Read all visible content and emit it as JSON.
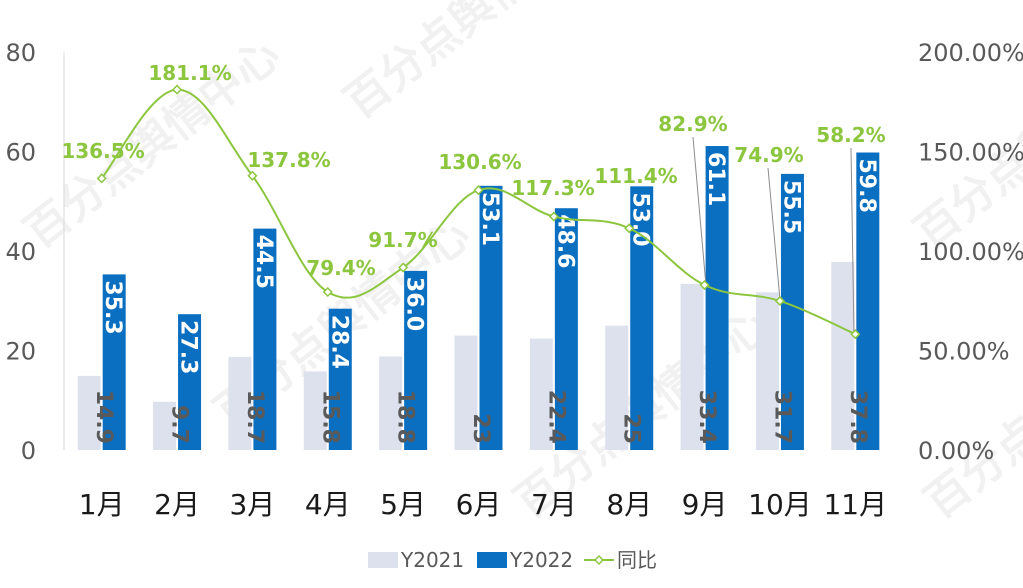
{
  "chart_data": {
    "type": "bar",
    "categories": [
      "1月",
      "2月",
      "3月",
      "4月",
      "5月",
      "6月",
      "7月",
      "8月",
      "9月",
      "10月",
      "11月"
    ],
    "series": [
      {
        "name": "Y2021",
        "type": "bar",
        "color": "#dde1ee",
        "values": [
          14.9,
          9.7,
          18.7,
          15.8,
          18.8,
          23,
          22.4,
          25,
          33.4,
          31.7,
          37.8
        ],
        "labels": [
          "14.9",
          "9.7",
          "18.7",
          "15.8",
          "18.8",
          "23",
          "22.4",
          "25",
          "33.4",
          "31.7",
          "37.8"
        ]
      },
      {
        "name": "Y2022",
        "type": "bar",
        "color": "#0b6fc1",
        "values": [
          35.3,
          27.3,
          44.5,
          28.4,
          36.0,
          53.1,
          48.6,
          53.0,
          61.1,
          55.5,
          59.8
        ],
        "labels": [
          "35.3",
          "27.3",
          "44.5",
          "28.4",
          "36.0",
          "53.1",
          "48.6",
          "53.0",
          "61.1",
          "55.5",
          "59.8"
        ]
      },
      {
        "name": "同比",
        "type": "line",
        "axis": "right",
        "color": "#8cc63f",
        "values": [
          1.365,
          1.811,
          1.378,
          0.794,
          0.917,
          1.306,
          1.173,
          1.114,
          0.829,
          0.749,
          0.582
        ],
        "labels": [
          "136.5%",
          "181.1%",
          "137.8%",
          "79.4%",
          "91.7%",
          "130.6%",
          "117.3%",
          "111.4%",
          "82.9%",
          "74.9%",
          "58.2%"
        ]
      }
    ],
    "ylim": [
      0,
      80
    ],
    "yticks": [
      "0",
      "20",
      "40",
      "60",
      "80"
    ],
    "y2lim": [
      0,
      2
    ],
    "y2ticks": [
      "0.00%",
      "50.00%",
      "100.00%",
      "150.00%",
      "200.00%"
    ],
    "grid": false,
    "legend": "bottom"
  },
  "watermark": "百分点舆情中心"
}
